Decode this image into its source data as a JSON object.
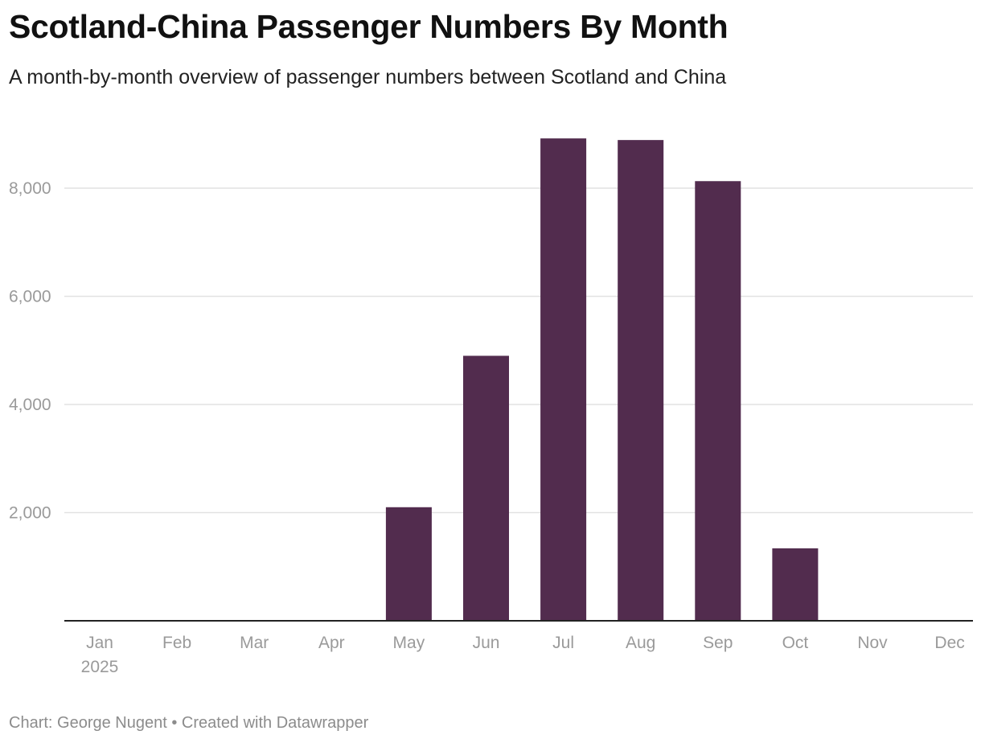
{
  "header": {
    "title": "Scotland-China Passenger Numbers By Month",
    "subtitle": "A month-by-month overview of passenger numbers between Scotland and China"
  },
  "footer": {
    "source": "Chart: George Nugent",
    "separator": " • ",
    "credit": "Created with Datawrapper"
  },
  "colors": {
    "bar": "#522c4e",
    "grid": "#e2e2e2",
    "axis": "#222222",
    "tick_text": "#9a9a9a"
  },
  "chart_data": {
    "type": "bar",
    "categories": [
      "Jan",
      "Feb",
      "Mar",
      "Apr",
      "May",
      "Jun",
      "Jul",
      "Aug",
      "Sep",
      "Oct",
      "Nov",
      "Dec"
    ],
    "year_label": "2025",
    "values": [
      0,
      0,
      0,
      0,
      2100,
      4900,
      8920,
      8890,
      8130,
      1340,
      0,
      0
    ],
    "ylim": [
      0,
      9000
    ],
    "yticks": [
      2000,
      4000,
      6000,
      8000
    ],
    "ytick_labels": [
      "2,000",
      "4,000",
      "6,000",
      "8,000"
    ],
    "title": "Scotland-China Passenger Numbers By Month",
    "subtitle": "A month-by-month overview of passenger numbers between Scotland and China",
    "xlabel": "",
    "ylabel": "",
    "grid": true,
    "legend": "none"
  }
}
